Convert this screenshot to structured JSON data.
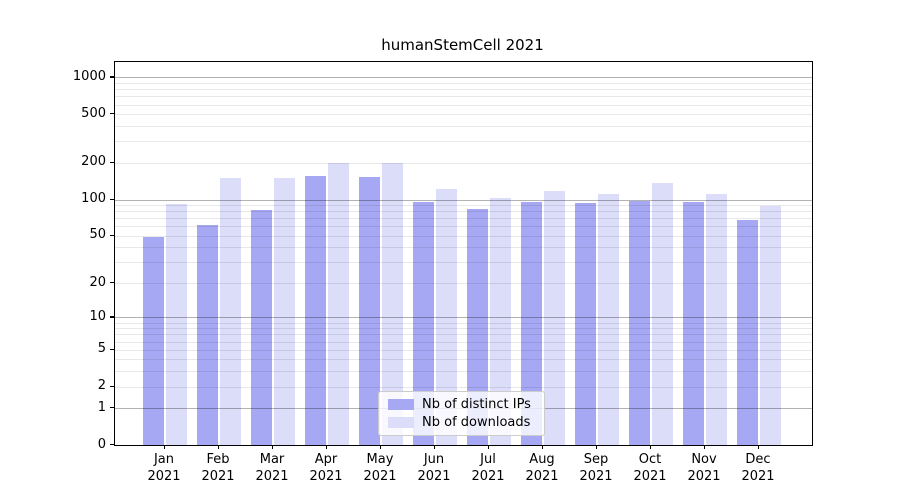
{
  "title": "humanStemCell 2021",
  "colors": {
    "distinct_ips": "#a6a8f4",
    "downloads": "#dbddf9",
    "axis": "#000000",
    "major_grid": "rgba(0,0,0,0.30)",
    "minor_grid": "rgba(0,0,0,0.09)"
  },
  "legend": {
    "items": [
      {
        "label": "Nb of distinct IPs",
        "color_key": "distinct_ips"
      },
      {
        "label": "Nb of downloads",
        "color_key": "downloads"
      }
    ]
  },
  "chart_data": {
    "type": "bar",
    "title": "humanStemCell 2021",
    "categories": [
      "Jan",
      "Feb",
      "Mar",
      "Apr",
      "May",
      "Jun",
      "Jul",
      "Aug",
      "Sep",
      "Oct",
      "Nov",
      "Dec"
    ],
    "year_label": "2021",
    "series": [
      {
        "name": "Nb of distinct IPs",
        "values": [
          49,
          61,
          82,
          157,
          153,
          96,
          84,
          95,
          93,
          97,
          96,
          68
        ]
      },
      {
        "name": "Nb of downloads",
        "values": [
          92,
          150,
          150,
          200,
          200,
          123,
          103,
          117,
          112,
          136,
          112,
          88
        ]
      }
    ],
    "xlabel": "",
    "ylabel": "",
    "yscale": "log1p",
    "ylim": [
      0,
      1300
    ],
    "yticks": [
      1000,
      500,
      200,
      100,
      50,
      20,
      10,
      5,
      2,
      1,
      0
    ],
    "minor_gridlines": [
      2,
      3,
      4,
      5,
      6,
      7,
      8,
      9,
      20,
      30,
      40,
      50,
      60,
      70,
      80,
      90,
      200,
      300,
      400,
      500,
      600,
      700,
      800,
      900
    ],
    "major_gridlines": [
      1,
      10,
      100,
      1000
    ],
    "grid": "on",
    "legend_position": "lower-center"
  }
}
